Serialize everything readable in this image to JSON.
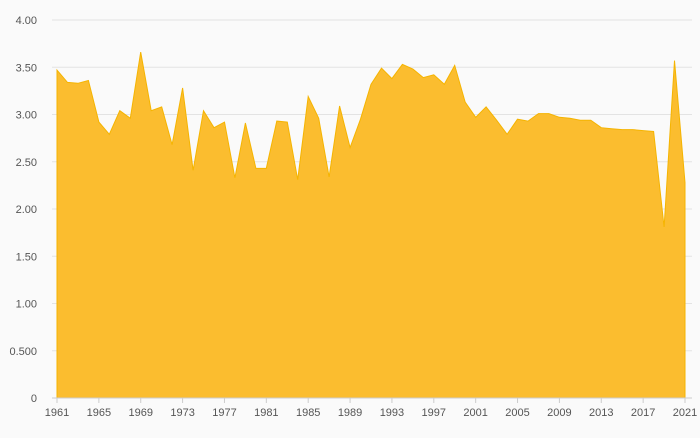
{
  "chart_data": {
    "type": "area",
    "title": "",
    "xlabel": "",
    "ylabel": "",
    "ylim": [
      0,
      4
    ],
    "grid": true,
    "color": "#fbbd2f",
    "stroke": "#f5b400",
    "y_ticks": [
      0,
      0.5,
      1,
      1.5,
      2,
      2.5,
      3,
      3.5,
      4
    ],
    "y_tick_labels": [
      "0",
      "0.500",
      "1.00",
      "1.50",
      "2.00",
      "2.50",
      "3.00",
      "3.50",
      "4.00"
    ],
    "x_tick_labels": [
      "1961",
      "1965",
      "1969",
      "1973",
      "1977",
      "1981",
      "1985",
      "1989",
      "1993",
      "1997",
      "2001",
      "2005",
      "2009",
      "2013",
      "2017",
      "2021"
    ],
    "x_start": 1961,
    "x_end": 2021,
    "values": [
      3.47,
      3.34,
      3.33,
      3.36,
      2.92,
      2.79,
      3.04,
      2.96,
      3.66,
      3.04,
      3.08,
      2.68,
      3.28,
      2.41,
      3.04,
      2.86,
      2.92,
      2.33,
      2.91,
      2.43,
      2.43,
      2.93,
      2.92,
      2.31,
      3.19,
      2.96,
      2.34,
      3.09,
      2.65,
      2.95,
      3.32,
      3.49,
      3.38,
      3.53,
      3.48,
      3.39,
      3.42,
      3.32,
      3.52,
      3.13,
      2.97,
      3.08,
      2.94,
      2.79,
      2.95,
      2.93,
      3.01,
      3.01,
      2.97,
      2.96,
      2.94,
      2.94,
      2.86,
      2.85,
      2.84,
      2.84,
      2.83,
      2.82,
      1.81,
      3.57,
      2.28
    ]
  }
}
